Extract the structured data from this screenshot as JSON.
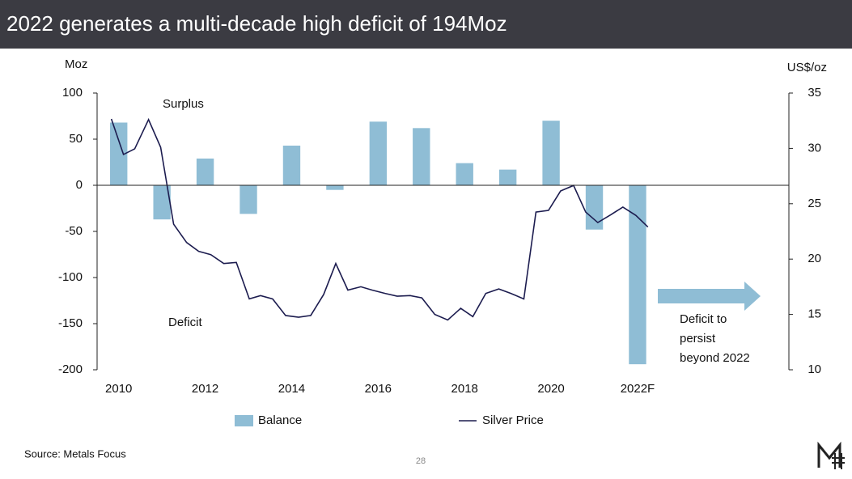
{
  "chart_data": {
    "type": "bar",
    "title": "2022 generates a multi-decade high deficit of 194Moz",
    "y_label": "Moz",
    "y2_label": "US$/oz",
    "categories": [
      "2010",
      null,
      "2012",
      null,
      "2014",
      null,
      "2016",
      null,
      "2018",
      null,
      "2020",
      null,
      "2022F"
    ],
    "xlim": [
      2009.5,
      2025.5
    ],
    "ylim": [
      -200,
      100
    ],
    "yticks": [
      -200,
      -150,
      -100,
      -50,
      0,
      50,
      100
    ],
    "y2lim": [
      10,
      35
    ],
    "y2ticks": [
      10,
      15,
      20,
      25,
      30,
      35
    ],
    "series": [
      {
        "name": "Balance",
        "type": "bar",
        "color": "#8fbdd5",
        "values": [
          68,
          -37,
          29,
          -31,
          43,
          -5,
          69,
          62,
          24,
          17,
          70,
          -48,
          -194
        ]
      },
      {
        "name": "Silver Price",
        "type": "line",
        "axis": "y2",
        "color": "#1c1c4f",
        "x": [
          2009.83,
          2010.11,
          2010.37,
          2010.69,
          2010.97,
          2011.27,
          2011.57,
          2011.85,
          2012.13,
          2012.43,
          2012.72,
          2013.02,
          2013.28,
          2013.56,
          2013.86,
          2014.16,
          2014.44,
          2014.74,
          2015.02,
          2015.3,
          2015.6,
          2015.86,
          2016.16,
          2016.44,
          2016.74,
          2017.01,
          2017.31,
          2017.61,
          2017.91,
          2018.19,
          2018.49,
          2018.79,
          2019.07,
          2019.37,
          2019.65,
          2019.94,
          2020.22,
          2020.52,
          2020.8,
          2021.08,
          2021.38,
          2021.66,
          2021.96,
          2022.24
        ],
        "values": [
          32.66,
          29.45,
          29.96,
          32.6,
          30.1,
          23.15,
          21.5,
          20.7,
          20.4,
          19.6,
          19.7,
          16.4,
          16.7,
          16.4,
          14.9,
          14.75,
          14.9,
          16.8,
          19.6,
          17.2,
          17.5,
          17.2,
          16.9,
          16.65,
          16.7,
          16.5,
          15.0,
          14.5,
          15.55,
          14.8,
          16.9,
          17.3,
          16.9,
          16.4,
          24.25,
          24.4,
          26.15,
          26.65,
          24.25,
          23.3,
          24.0,
          24.7,
          23.95,
          22.9
        ]
      }
    ],
    "annotations": {
      "surplus": "Surplus",
      "deficit": "Deficit",
      "outlook": [
        "Deficit to",
        "persist",
        "beyond 2022"
      ]
    },
    "source": "Source: Metals Focus",
    "page_number": "28"
  }
}
